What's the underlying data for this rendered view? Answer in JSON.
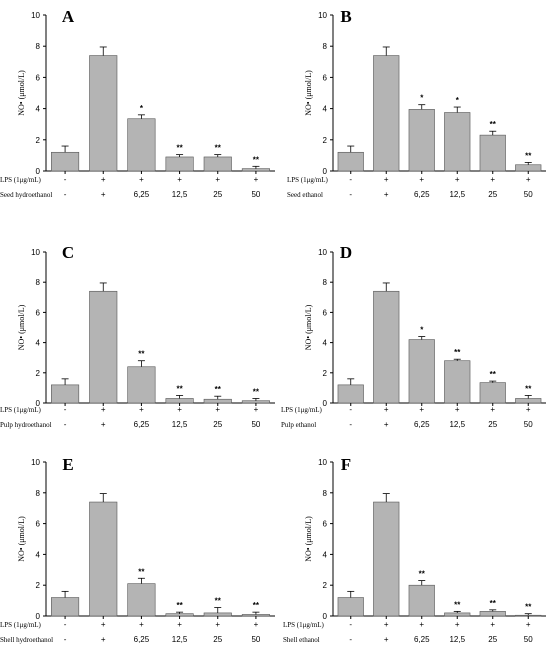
{
  "chart_data": [
    {
      "type": "bar",
      "panel": "A",
      "ylabel": "NO• (μmol/L)",
      "ylim": [
        0,
        10
      ],
      "yticks": [
        "0",
        "2",
        "4",
        "6",
        "8",
        "10"
      ],
      "row1_label": "LPS (1μg/mL)",
      "row2_label": "Seed hydroethanol",
      "row1": [
        "-",
        "+",
        "+",
        "+",
        "+",
        "+"
      ],
      "row2": [
        "-",
        "+",
        "6,25",
        "12,5",
        "25",
        "50"
      ],
      "values": [
        1.2,
        7.4,
        3.35,
        0.9,
        0.9,
        0.15
      ],
      "errors": [
        0.4,
        0.55,
        0.25,
        0.15,
        0.15,
        0.15
      ],
      "significance": [
        "",
        "",
        "*",
        "**",
        "**",
        "**"
      ]
    },
    {
      "type": "bar",
      "panel": "B",
      "ylabel": "NO• (μmol/L)",
      "ylim": [
        0,
        10
      ],
      "yticks": [
        "0",
        "2",
        "4",
        "6",
        "8",
        "10"
      ],
      "row1_label": "LPS (1μg/mL)",
      "row2_label": "Seed ethanol",
      "row1": [
        "-",
        "+",
        "+",
        "+",
        "+",
        "+"
      ],
      "row2": [
        "-",
        "+",
        "6,25",
        "12,5",
        "25",
        "50"
      ],
      "values": [
        1.2,
        7.4,
        3.95,
        3.75,
        2.3,
        0.4
      ],
      "errors": [
        0.4,
        0.55,
        0.3,
        0.35,
        0.25,
        0.15
      ],
      "significance": [
        "",
        "",
        "*",
        "*",
        "**",
        "**"
      ]
    },
    {
      "type": "bar",
      "panel": "C",
      "ylabel": "NO• (μmol/L)",
      "ylim": [
        0,
        10
      ],
      "yticks": [
        "0",
        "2",
        "4",
        "6",
        "8",
        "10"
      ],
      "row1_label": "LPS (1μg/mL)",
      "row2_label": "Pulp hydroethanol",
      "row1": [
        "-",
        "+",
        "+",
        "+",
        "+",
        "+"
      ],
      "row2": [
        "-",
        "+",
        "6,25",
        "12,5",
        "25",
        "50"
      ],
      "values": [
        1.2,
        7.4,
        2.4,
        0.3,
        0.25,
        0.15
      ],
      "errors": [
        0.4,
        0.55,
        0.4,
        0.2,
        0.2,
        0.15
      ],
      "significance": [
        "",
        "",
        "**",
        "**",
        "**",
        "**"
      ]
    },
    {
      "type": "bar",
      "panel": "D",
      "ylabel": "NO• (μmol/L)",
      "ylim": [
        0,
        10
      ],
      "yticks": [
        "0",
        "2",
        "4",
        "6",
        "8",
        "10"
      ],
      "row1_label": "LPS (1μg/mL)",
      "row2_label": "Pulp ethanol",
      "row1": [
        "-",
        "+",
        "+",
        "+",
        "+",
        "+"
      ],
      "row2": [
        "-",
        "+",
        "6,25",
        "12,5",
        "25",
        "50"
      ],
      "values": [
        1.2,
        7.4,
        4.2,
        2.8,
        1.35,
        0.3
      ],
      "errors": [
        0.4,
        0.55,
        0.2,
        0.1,
        0.1,
        0.2
      ],
      "significance": [
        "",
        "",
        "*",
        "**",
        "**",
        "**"
      ]
    },
    {
      "type": "bar",
      "panel": "E",
      "ylabel": "NO• (μmol/L)",
      "ylim": [
        0,
        10
      ],
      "yticks": [
        "0",
        "2",
        "4",
        "6",
        "8",
        "10"
      ],
      "row1_label": "LPS (1μg/mL)",
      "row2_label": "Shell hydroethanol",
      "row1": [
        "-",
        "+",
        "+",
        "+",
        "+",
        "+"
      ],
      "row2": [
        "-",
        "+",
        "6,25",
        "12,5",
        "25",
        "50"
      ],
      "values": [
        1.2,
        7.4,
        2.1,
        0.15,
        0.2,
        0.1
      ],
      "errors": [
        0.4,
        0.55,
        0.35,
        0.1,
        0.35,
        0.15
      ],
      "significance": [
        "",
        "",
        "**",
        "**",
        "**",
        "**"
      ]
    },
    {
      "type": "bar",
      "panel": "F",
      "ylabel": "NO• (μmol/L)",
      "ylim": [
        0,
        10
      ],
      "yticks": [
        "0",
        "2",
        "4",
        "6",
        "8",
        "10"
      ],
      "row1_label": "LPS (1μg/mL)",
      "row2_label": "Shell ethanol",
      "row1": [
        "-",
        "+",
        "+",
        "+",
        "+",
        "+"
      ],
      "row2": [
        "-",
        "+",
        "6,25",
        "12,5",
        "25",
        "50"
      ],
      "values": [
        1.2,
        7.4,
        2.0,
        0.2,
        0.3,
        0.05
      ],
      "errors": [
        0.4,
        0.55,
        0.3,
        0.1,
        0.1,
        0.1
      ],
      "significance": [
        "",
        "",
        "**",
        "**",
        "**",
        "**"
      ]
    }
  ],
  "colors": {
    "bar_fill": "#b4b4b4",
    "bar_stroke": "#555555",
    "axis": "#000000"
  }
}
